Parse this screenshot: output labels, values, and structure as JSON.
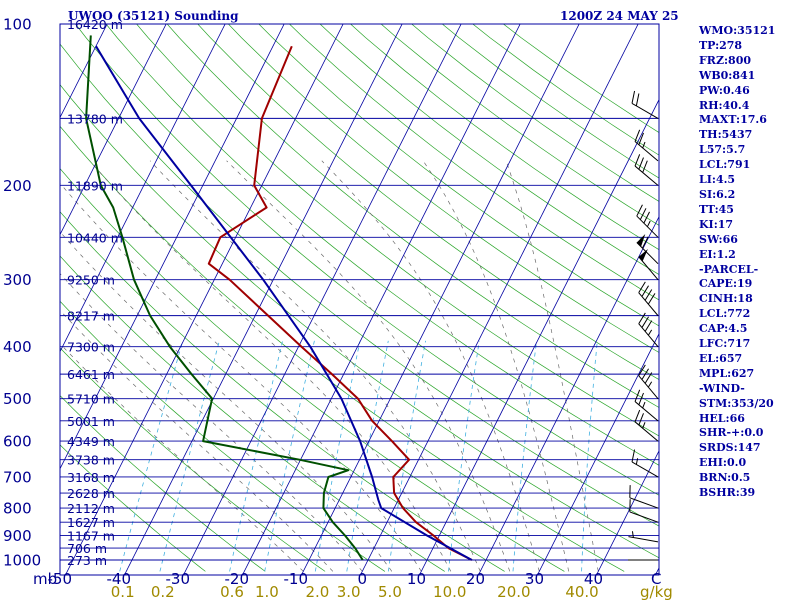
{
  "header": {
    "station": "UWOO (35121) Sounding",
    "time": "1200Z 24 MAY 25"
  },
  "stats": [
    "WMO:35121",
    "TP:278",
    "FRZ:800",
    "WB0:841",
    "PW:0.46",
    "RH:40.4",
    "MAXT:17.6",
    "TH:5437",
    "L57:5.7",
    "LCL:791",
    "LI:4.5",
    "SI:6.2",
    "TT:45",
    "KI:17",
    "SW:66",
    "EI:1.2",
    "-PARCEL-",
    "CAPE:19",
    "CINH:18",
    "LCL:772",
    "CAP:4.5",
    "LFC:717",
    "EL:657",
    "MPL:627",
    "-WIND-",
    "STM:353/20",
    "HEL:66",
    "SHR-+:0.0",
    "SRDS:147",
    "EHI:0.0",
    "BRN:0.5",
    "BSHR:39"
  ],
  "axes": {
    "pressure_unit": "mb",
    "mixing_ratio_unit": "g/kg",
    "pressure_tick_labels": [
      "100",
      "200",
      "300",
      "400",
      "500",
      "600",
      "700",
      "800",
      "900",
      "1000"
    ],
    "temperature_tick_labels": [
      "-50",
      "-40",
      "-30",
      "-20",
      "-10",
      "0",
      "10",
      "20",
      "30",
      "40"
    ],
    "mixing_ratio_tick_labels": [
      "0.1",
      "0.2",
      "0.6",
      "1.0",
      "2.0",
      "3.0",
      "5.0",
      "10.0",
      "20.0",
      "40.0"
    ],
    "height_labels": [
      {
        "p": 100,
        "text": "16420 m"
      },
      {
        "p": 150,
        "text": "13780 m"
      },
      {
        "p": 200,
        "text": "11890 m"
      },
      {
        "p": 250,
        "text": "10440 m"
      },
      {
        "p": 300,
        "text": "9250 m"
      },
      {
        "p": 350,
        "text": "8217 m"
      },
      {
        "p": 400,
        "text": "7300 m"
      },
      {
        "p": 450,
        "text": "6461 m"
      },
      {
        "p": 500,
        "text": "5710 m"
      },
      {
        "p": 550,
        "text": "5001 m"
      },
      {
        "p": 600,
        "text": "4349 m"
      },
      {
        "p": 650,
        "text": "3738 m"
      },
      {
        "p": 700,
        "text": "3168 m"
      },
      {
        "p": 750,
        "text": "2628 m"
      },
      {
        "p": 800,
        "text": "2112 m"
      },
      {
        "p": 850,
        "text": "1627 m"
      },
      {
        "p": 900,
        "text": "1167 m"
      },
      {
        "p": 950,
        "text": "706 m"
      },
      {
        "p": 1000,
        "text": "273 m"
      }
    ]
  },
  "chart_data": {
    "type": "line",
    "title": "UWOO (35121) Sounding",
    "subtitle": "1200Z 24 MAY 25",
    "y_scale": "log-pressure",
    "ylim": [
      1000,
      100
    ],
    "xlim": [
      -50,
      50
    ],
    "xlabel": "",
    "ylabel": "mb",
    "grid": true,
    "series": [
      {
        "key": "temperature",
        "color": "#a00000",
        "points": [
          [
            1000,
            17.6
          ],
          [
            950,
            12.6
          ],
          [
            900,
            9.0
          ],
          [
            850,
            4.9
          ],
          [
            800,
            1.5
          ],
          [
            750,
            -1.3
          ],
          [
            700,
            -2.8
          ],
          [
            650,
            -1.6
          ],
          [
            600,
            -6.1
          ],
          [
            550,
            -11.2
          ],
          [
            500,
            -15.5
          ],
          [
            450,
            -22.0
          ],
          [
            400,
            -29.5
          ],
          [
            350,
            -37.8
          ],
          [
            300,
            -47.4
          ],
          [
            280,
            -52.3
          ],
          [
            250,
            -52.6
          ],
          [
            220,
            -47.3
          ],
          [
            200,
            -51.3
          ],
          [
            150,
            -55.7
          ],
          [
            110,
            -56.8
          ]
        ]
      },
      {
        "key": "dewpoint",
        "color": "#005000",
        "points": [
          [
            1000,
            -0.9
          ],
          [
            950,
            -3.2
          ],
          [
            900,
            -6.0
          ],
          [
            850,
            -9.2
          ],
          [
            800,
            -12.0
          ],
          [
            750,
            -13.2
          ],
          [
            700,
            -13.8
          ],
          [
            680,
            -11.0
          ],
          [
            650,
            -20.2
          ],
          [
            600,
            -38.1
          ],
          [
            500,
            -40.2
          ],
          [
            450,
            -45.8
          ],
          [
            400,
            -51.8
          ],
          [
            350,
            -57.8
          ],
          [
            300,
            -63.6
          ],
          [
            250,
            -69.2
          ],
          [
            220,
            -73.3
          ],
          [
            200,
            -77.3
          ],
          [
            150,
            -85.5
          ],
          [
            105,
            -91.8
          ]
        ]
      },
      {
        "key": "parcel",
        "color": "#0000a0",
        "points": [
          [
            1000,
            17.6
          ],
          [
            900,
            7.9
          ],
          [
            800,
            -2.2
          ],
          [
            772,
            -3.4
          ],
          [
            700,
            -6.4
          ],
          [
            600,
            -11.5
          ],
          [
            500,
            -18.3
          ],
          [
            400,
            -28.0
          ],
          [
            300,
            -41.7
          ],
          [
            200,
            -62.0
          ],
          [
            150,
            -76.5
          ],
          [
            110,
            -90.0
          ]
        ]
      }
    ],
    "wind_barbs": [
      {
        "p": 1000,
        "dir": 270,
        "kt": 0
      },
      {
        "p": 925,
        "dir": 280,
        "kt": 5
      },
      {
        "p": 850,
        "dir": 290,
        "kt": 10
      },
      {
        "p": 800,
        "dir": 290,
        "kt": 10
      },
      {
        "p": 700,
        "dir": 300,
        "kt": 15
      },
      {
        "p": 600,
        "dir": 310,
        "kt": 25
      },
      {
        "p": 550,
        "dir": 310,
        "kt": 25
      },
      {
        "p": 500,
        "dir": 320,
        "kt": 35
      },
      {
        "p": 400,
        "dir": 320,
        "kt": 35
      },
      {
        "p": 350,
        "dir": 320,
        "kt": 40
      },
      {
        "p": 300,
        "dir": 320,
        "kt": 50
      },
      {
        "p": 280,
        "dir": 315,
        "kt": 60
      },
      {
        "p": 250,
        "dir": 315,
        "kt": 35
      },
      {
        "p": 200,
        "dir": 310,
        "kt": 30
      },
      {
        "p": 180,
        "dir": 310,
        "kt": 25
      },
      {
        "p": 150,
        "dir": 300,
        "kt": 20
      }
    ]
  }
}
